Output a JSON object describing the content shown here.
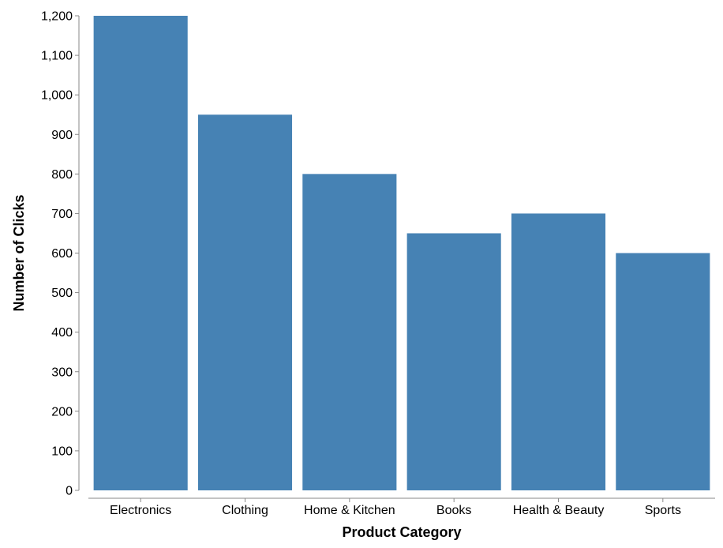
{
  "chart_data": {
    "type": "bar",
    "categories": [
      "Electronics",
      "Clothing",
      "Home & Kitchen",
      "Books",
      "Health & Beauty",
      "Sports"
    ],
    "values": [
      1200,
      950,
      800,
      650,
      700,
      600
    ],
    "xlabel": "Product Category",
    "ylabel": "Number of Clicks",
    "ylim": [
      0,
      1200
    ],
    "yticks": [
      0,
      100,
      200,
      300,
      400,
      500,
      600,
      700,
      800,
      900,
      1000,
      1100,
      1200
    ],
    "grid": false,
    "bar_color": "#4682b4",
    "axis_color": "#888888"
  }
}
